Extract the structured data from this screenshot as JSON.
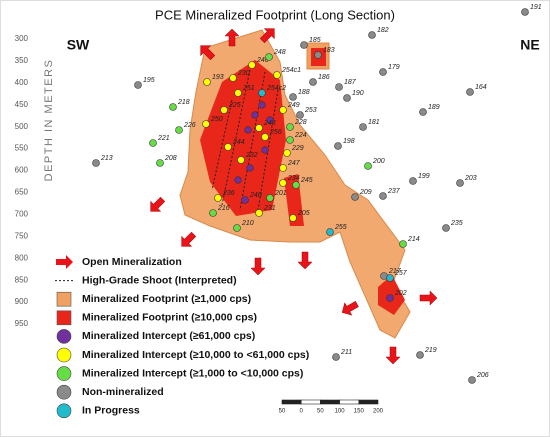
{
  "title": "PCE Mineralized Footprint (Long Section)",
  "directions": {
    "left": "SW",
    "right": "NE"
  },
  "depth_axis": {
    "label": "DEPTH IN METERS",
    "ticks": [
      300,
      350,
      400,
      450,
      500,
      550,
      600,
      650,
      700,
      750,
      800,
      850,
      900,
      950
    ]
  },
  "scale_bar": {
    "labels": [
      "50",
      "0",
      "50",
      "100",
      "150",
      "200"
    ]
  },
  "legend": {
    "items": [
      {
        "label": "Open Mineralization",
        "color": "#e8141a"
      },
      {
        "label": "High-Grade Shoot (Interpreted)",
        "color": "#222222"
      },
      {
        "label": "Mineralized Footprint (≥1,000 cps)",
        "color": "#f0a060"
      },
      {
        "label": "Mineralized Footprint (≥10,000 cps)",
        "color": "#e8261a"
      },
      {
        "label": "Mineralized Intercept (≥61,000 cps)",
        "color": "#7030a0",
        "holes": [
          "240",
          "202"
        ]
      },
      {
        "label": "Mineralized Intercept (≥10,000  to  <61,000 cps)",
        "color": "#ffff00",
        "holes": [
          "246",
          "230",
          "193",
          "251",
          "254c1",
          "225",
          "250",
          "243",
          "249",
          "232",
          "244",
          "229",
          "247",
          "234",
          "236",
          "231",
          "205",
          "256"
        ]
      },
      {
        "label": "Mineralized Intercept (≥1,000  to  <10,000 cps)",
        "color": "#66dd44",
        "holes": [
          "248",
          "218",
          "226",
          "221",
          "208",
          "228",
          "224",
          "200",
          "245",
          "201",
          "216",
          "210",
          "214"
        ]
      },
      {
        "label": "Non-mineralized",
        "color": "#8a8a8a",
        "holes": [
          "191",
          "182",
          "185",
          "183",
          "179",
          "187",
          "186",
          "195",
          "188",
          "190",
          "253",
          "164",
          "189",
          "181",
          "198",
          "213",
          "209",
          "237",
          "199",
          "203",
          "235",
          "217",
          "211",
          "219",
          "206"
        ]
      },
      {
        "label": "In Progress",
        "color": "#22bbcc",
        "holes": [
          "254c2",
          "255",
          "257"
        ]
      }
    ]
  }
}
